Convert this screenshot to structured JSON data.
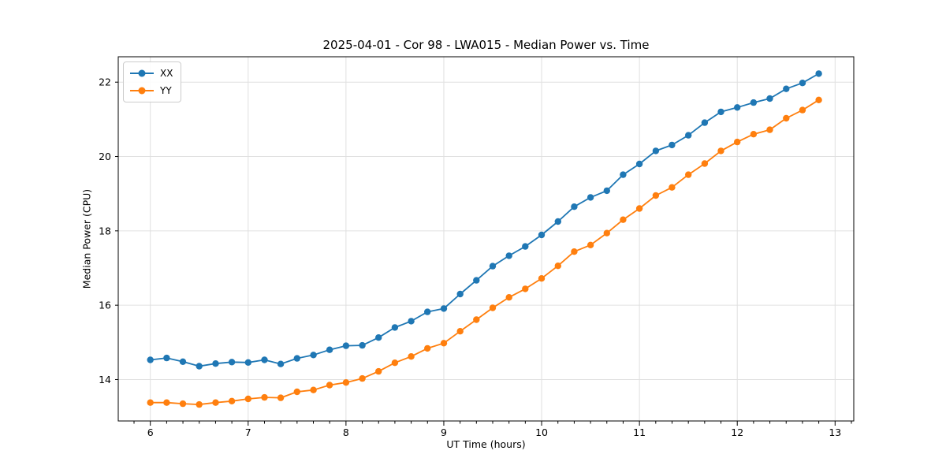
{
  "chart_data": {
    "type": "line",
    "title": "2025-04-01 - Cor 98 - LWA015 - Median Power vs. Time",
    "xlabel": "UT Time (hours)",
    "ylabel": "Median Power (CPU)",
    "xlim": [
      5.672,
      13.191
    ],
    "ylim": [
      12.886,
      22.683
    ],
    "xticks": [
      6,
      7,
      8,
      9,
      10,
      11,
      12,
      13
    ],
    "yticks": [
      14,
      16,
      18,
      20,
      22
    ],
    "x_minor_tick_step": 0.16667,
    "grid": true,
    "legend_position": "upper left",
    "marker": "o",
    "x": [
      6.0,
      6.167,
      6.333,
      6.5,
      6.667,
      6.833,
      7.0,
      7.167,
      7.333,
      7.5,
      7.667,
      7.833,
      8.0,
      8.167,
      8.333,
      8.5,
      8.667,
      8.833,
      9.0,
      9.167,
      9.333,
      9.5,
      9.667,
      9.833,
      10.0,
      10.167,
      10.333,
      10.5,
      10.667,
      10.833,
      11.0,
      11.167,
      11.333,
      11.5,
      11.667,
      11.833,
      12.0,
      12.167,
      12.333,
      12.5,
      12.667,
      12.833
    ],
    "series": [
      {
        "name": "XX",
        "color": "#1f77b4",
        "values": [
          14.53,
          14.58,
          14.48,
          14.36,
          14.43,
          14.47,
          14.46,
          14.53,
          14.42,
          14.57,
          14.66,
          14.8,
          14.91,
          14.92,
          15.13,
          15.4,
          15.57,
          15.82,
          15.91,
          16.3,
          16.67,
          17.05,
          17.33,
          17.58,
          17.89,
          18.25,
          18.65,
          18.9,
          19.08,
          19.51,
          19.8,
          20.15,
          20.31,
          20.57,
          20.91,
          21.2,
          21.32,
          21.45,
          21.56,
          21.82,
          21.98,
          22.23
        ]
      },
      {
        "name": "YY",
        "color": "#ff7f0e",
        "values": [
          13.38,
          13.38,
          13.35,
          13.33,
          13.38,
          13.42,
          13.48,
          13.52,
          13.51,
          13.67,
          13.72,
          13.85,
          13.92,
          14.03,
          14.22,
          14.45,
          14.62,
          14.84,
          14.98,
          15.3,
          15.61,
          15.93,
          16.21,
          16.44,
          16.72,
          17.06,
          17.44,
          17.62,
          17.94,
          18.3,
          18.6,
          18.95,
          19.17,
          19.51,
          19.81,
          20.15,
          20.39,
          20.6,
          20.72,
          21.03,
          21.25,
          21.52
        ]
      }
    ],
    "style": {
      "grid_color": "#e0e0e0",
      "spine_color": "#000000",
      "tick_color": "#000000",
      "text_color": "#000000",
      "line_width": 1.8,
      "marker_radius": 4.2
    }
  }
}
